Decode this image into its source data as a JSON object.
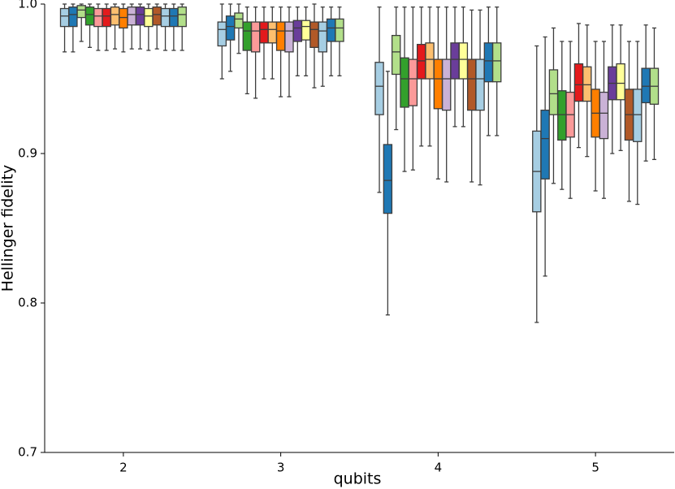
{
  "chart_data": {
    "type": "box",
    "xlabel": "qubits",
    "ylabel": "Hellinger fidelity",
    "categories": [
      "2",
      "3",
      "4",
      "5"
    ],
    "ylim": [
      0.7,
      1.0
    ],
    "yticks": [
      0.7,
      0.8,
      0.9,
      {
        "value": 1,
        "label": "1.0"
      }
    ],
    "series": [
      {
        "color": "#a6cee3",
        "values": [
          [
            0.968,
            0.985,
            0.992,
            0.997,
            1.0
          ],
          [
            0.95,
            0.972,
            0.983,
            0.988,
            1.0
          ],
          [
            0.874,
            0.926,
            0.945,
            0.961,
            0.998
          ],
          [
            0.787,
            0.861,
            0.888,
            0.915,
            0.972
          ]
        ]
      },
      {
        "color": "#1f78b4",
        "values": [
          [
            0.968,
            0.985,
            0.993,
            0.998,
            1.0
          ],
          [
            0.955,
            0.976,
            0.985,
            0.992,
            1.0
          ],
          [
            0.792,
            0.86,
            0.882,
            0.906,
            0.955
          ],
          [
            0.818,
            0.883,
            0.91,
            0.929,
            0.978
          ]
        ]
      },
      {
        "color": "#b2df8a",
        "values": [
          [
            0.975,
            0.991,
            0.996,
            0.999,
            1.0
          ],
          [
            0.967,
            0.984,
            0.99,
            0.994,
            1.0
          ],
          [
            0.916,
            0.953,
            0.968,
            0.979,
            0.998
          ],
          [
            0.88,
            0.926,
            0.94,
            0.956,
            0.984
          ]
        ]
      },
      {
        "color": "#33a02c",
        "values": [
          [
            0.971,
            0.986,
            0.993,
            0.998,
            1.0
          ],
          [
            0.94,
            0.969,
            0.982,
            0.988,
            0.998
          ],
          [
            0.888,
            0.931,
            0.95,
            0.964,
            0.998
          ],
          [
            0.876,
            0.909,
            0.926,
            0.942,
            0.975
          ]
        ]
      },
      {
        "color": "#fb9a99",
        "values": [
          [
            0.969,
            0.985,
            0.992,
            0.997,
            1.0
          ],
          [
            0.937,
            0.968,
            0.982,
            0.988,
            0.998
          ],
          [
            0.889,
            0.932,
            0.95,
            0.963,
            0.998
          ],
          [
            0.87,
            0.911,
            0.926,
            0.941,
            0.975
          ]
        ]
      },
      {
        "color": "#e31a1c",
        "values": [
          [
            0.969,
            0.985,
            0.992,
            0.997,
            1.0
          ],
          [
            0.95,
            0.974,
            0.983,
            0.988,
            0.998
          ],
          [
            0.905,
            0.95,
            0.962,
            0.973,
            0.998
          ],
          [
            0.904,
            0.935,
            0.946,
            0.96,
            0.987
          ]
        ]
      },
      {
        "color": "#fdbf6f",
        "values": [
          [
            0.97,
            0.986,
            0.993,
            0.998,
            1.0
          ],
          [
            0.95,
            0.974,
            0.983,
            0.988,
            0.998
          ],
          [
            0.905,
            0.95,
            0.963,
            0.974,
            0.998
          ],
          [
            0.898,
            0.935,
            0.946,
            0.958,
            0.986
          ]
        ]
      },
      {
        "color": "#ff7f00",
        "values": [
          [
            0.968,
            0.984,
            0.991,
            0.997,
            1.0
          ],
          [
            0.938,
            0.969,
            0.982,
            0.988,
            0.998
          ],
          [
            0.883,
            0.93,
            0.95,
            0.963,
            0.998
          ],
          [
            0.875,
            0.911,
            0.927,
            0.943,
            0.975
          ]
        ]
      },
      {
        "color": "#cab2d6",
        "values": [
          [
            0.97,
            0.986,
            0.993,
            0.998,
            1.0
          ],
          [
            0.938,
            0.968,
            0.982,
            0.988,
            0.998
          ],
          [
            0.881,
            0.929,
            0.95,
            0.963,
            0.998
          ],
          [
            0.87,
            0.91,
            0.927,
            0.941,
            0.975
          ]
        ]
      },
      {
        "color": "#6a3d9a",
        "values": [
          [
            0.97,
            0.986,
            0.993,
            0.998,
            1.0
          ],
          [
            0.952,
            0.975,
            0.984,
            0.989,
            0.998
          ],
          [
            0.918,
            0.95,
            0.963,
            0.974,
            0.998
          ],
          [
            0.9,
            0.936,
            0.947,
            0.958,
            0.986
          ]
        ]
      },
      {
        "color": "#ffff99",
        "values": [
          [
            0.969,
            0.985,
            0.992,
            0.997,
            1.0
          ],
          [
            0.952,
            0.976,
            0.985,
            0.989,
            0.998
          ],
          [
            0.918,
            0.95,
            0.963,
            0.974,
            0.998
          ],
          [
            0.902,
            0.936,
            0.947,
            0.96,
            0.986
          ]
        ]
      },
      {
        "color": "#b15928",
        "values": [
          [
            0.97,
            0.986,
            0.993,
            0.998,
            1.0
          ],
          [
            0.944,
            0.971,
            0.983,
            0.988,
            1.0
          ],
          [
            0.881,
            0.929,
            0.95,
            0.963,
            0.996
          ],
          [
            0.868,
            0.909,
            0.926,
            0.943,
            0.975
          ]
        ]
      },
      {
        "color": "#a6cee3",
        "values": [
          [
            0.969,
            0.985,
            0.992,
            0.997,
            1.0
          ],
          [
            0.945,
            0.968,
            0.982,
            0.988,
            0.998
          ],
          [
            0.879,
            0.929,
            0.95,
            0.963,
            0.996
          ],
          [
            0.866,
            0.908,
            0.926,
            0.943,
            0.975
          ]
        ]
      },
      {
        "color": "#1f78b4",
        "values": [
          [
            0.969,
            0.985,
            0.992,
            0.997,
            1.0
          ],
          [
            0.952,
            0.975,
            0.984,
            0.99,
            0.998
          ],
          [
            0.912,
            0.948,
            0.962,
            0.974,
            0.998
          ],
          [
            0.895,
            0.934,
            0.945,
            0.957,
            0.986
          ]
        ]
      },
      {
        "color": "#b2df8a",
        "values": [
          [
            0.969,
            0.985,
            0.993,
            0.998,
            1.0
          ],
          [
            0.952,
            0.975,
            0.984,
            0.99,
            0.998
          ],
          [
            0.912,
            0.948,
            0.962,
            0.974,
            0.998
          ],
          [
            0.896,
            0.933,
            0.945,
            0.957,
            0.984
          ]
        ]
      }
    ]
  }
}
